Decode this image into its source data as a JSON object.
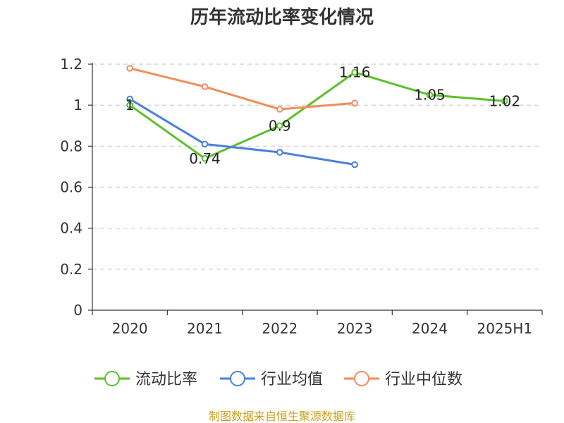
{
  "source": "制图数据来自恒生聚源数据库",
  "chart_data": {
    "type": "line",
    "title": "历年流动比率变化情况",
    "categories": [
      "2020",
      "2021",
      "2022",
      "2023",
      "2024",
      "2025H1"
    ],
    "ylim": [
      0,
      1.2
    ],
    "yticks": [
      "0",
      "0.2",
      "0.4",
      "0.6",
      "0.8",
      "1",
      "1.2"
    ],
    "grid": true,
    "legend_position": "bottom",
    "series": [
      {
        "name": "流动比率",
        "color": "#5cc02a",
        "values": [
          1.0,
          0.74,
          0.9,
          1.16,
          1.05,
          1.02
        ],
        "labels": [
          "1",
          "0.74",
          "0.9",
          "1.16",
          "1.05",
          "1.02"
        ]
      },
      {
        "name": "行业均值",
        "color": "#4a7fdc",
        "values": [
          1.03,
          0.81,
          0.77,
          0.71,
          null,
          null
        ]
      },
      {
        "name": "行业中位数",
        "color": "#f28c5a",
        "values": [
          1.18,
          1.09,
          0.98,
          1.01,
          null,
          null
        ]
      }
    ]
  }
}
